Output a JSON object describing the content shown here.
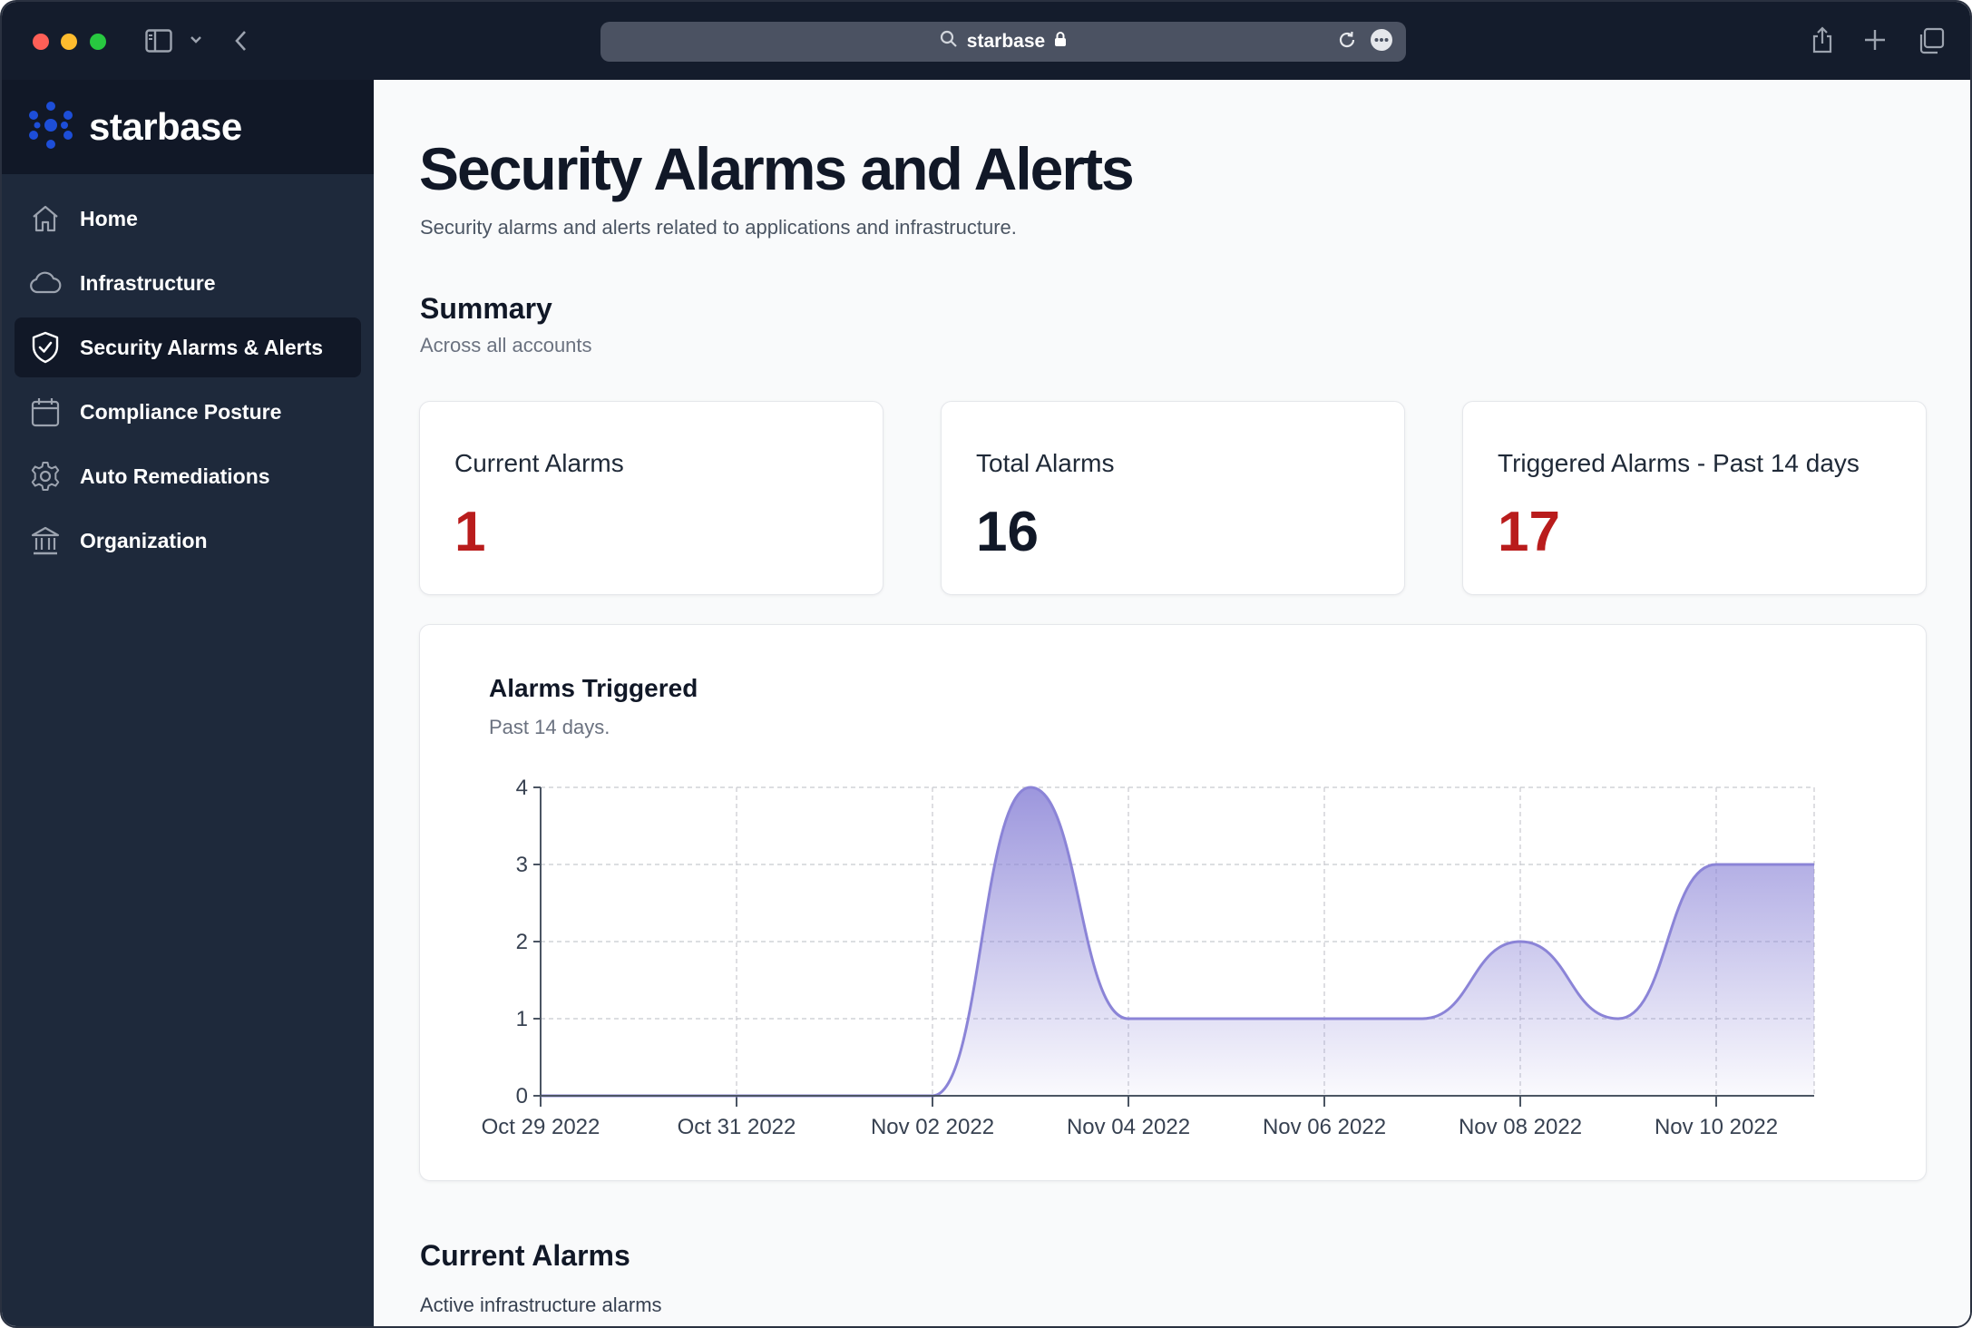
{
  "browser": {
    "url": "starbase"
  },
  "sidebar": {
    "brand": "starbase",
    "items": [
      {
        "label": "Home",
        "icon": "home-icon",
        "active": false
      },
      {
        "label": "Infrastructure",
        "icon": "cloud-icon",
        "active": false
      },
      {
        "label": "Security Alarms & Alerts",
        "icon": "shield-check-icon",
        "active": true
      },
      {
        "label": "Compliance Posture",
        "icon": "calendar-icon",
        "active": false
      },
      {
        "label": "Auto Remediations",
        "icon": "gear-icon",
        "active": false
      },
      {
        "label": "Organization",
        "icon": "building-icon",
        "active": false
      }
    ]
  },
  "main": {
    "title": "Security Alarms and Alerts",
    "subtitle": "Security alarms and alerts related to applications and infrastructure.",
    "summary": {
      "title": "Summary",
      "subtitle": "Across all accounts",
      "cards": [
        {
          "label": "Current Alarms",
          "value": "1",
          "color": "#b91c1c"
        },
        {
          "label": "Total Alarms",
          "value": "16",
          "color": "#111827"
        },
        {
          "label": "Triggered Alarms - Past 14 days",
          "value": "17",
          "color": "#b91c1c"
        }
      ]
    },
    "chart": {
      "title": "Alarms Triggered",
      "subtitle": "Past 14 days."
    },
    "current_alarms": {
      "title": "Current Alarms",
      "subtitle": "Active infrastructure alarms"
    }
  },
  "colors": {
    "accent": "#1d4ed8",
    "chart_line": "#8b84d7",
    "alert_red": "#b91c1c"
  },
  "chart_data": {
    "type": "area",
    "title": "Alarms Triggered",
    "subtitle": "Past 14 days.",
    "x": [
      "2022-10-29",
      "2022-10-30",
      "2022-10-31",
      "2022-11-01",
      "2022-11-02",
      "2022-11-03",
      "2022-11-04",
      "2022-11-05",
      "2022-11-06",
      "2022-11-07",
      "2022-11-08",
      "2022-11-09",
      "2022-11-10",
      "2022-11-11"
    ],
    "tick_labels": [
      "Oct 29 2022",
      "Oct 31 2022",
      "Nov 02 2022",
      "Nov 04 2022",
      "Nov 06 2022",
      "Nov 08 2022",
      "Nov 10 2022"
    ],
    "values": [
      0,
      0,
      0,
      0,
      0,
      4,
      1,
      1,
      1,
      1,
      2,
      1,
      3,
      3
    ],
    "ylim": [
      0,
      4
    ],
    "yticks": [
      0,
      1,
      2,
      3,
      4
    ],
    "grid": true,
    "color": "#8b84d7"
  }
}
